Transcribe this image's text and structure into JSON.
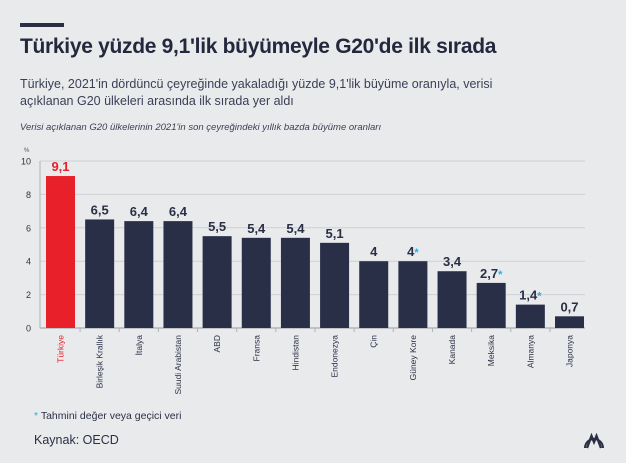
{
  "title": "Türkiye yüzde 9,1'lik büyümeyle G20'de ilk sırada",
  "subtitle": "Türkiye, 2021'in dördüncü çeyreğinde yakaladığı yüzde 9,1'lik büyüme oranıyla, verisi açıklanan G20 ülkeleri arasında ilk sırada yer aldı",
  "caption": "Verisi açıklanan G20 ülkelerinin 2021'in son çeyreğindeki yıllık bazda büyüme oranları",
  "footnote": {
    "star": "*",
    "text": " Tahmini değer veya geçici veri"
  },
  "source": "Kaynak: OECD",
  "logo_text": "AA",
  "colors": {
    "highlight": "#e8202a",
    "bar": "#2a2f48",
    "star": "#2ab0e0",
    "background": "#e9eaec"
  },
  "chart_data": {
    "type": "bar",
    "ylabel": "%",
    "ylim": [
      0,
      10
    ],
    "yticks": [
      "0",
      "2",
      "4",
      "6",
      "8",
      "10"
    ],
    "grid": true,
    "categories": [
      "Türkiye",
      "Birleşik Krallık",
      "İtalya",
      "Suudi Arabistan",
      "ABD",
      "Fransa",
      "Hindistan",
      "Endonezya",
      "Çin",
      "Güney Kore",
      "Kanada",
      "Meksika",
      "Almanya",
      "Japonya"
    ],
    "values": [
      9.1,
      6.5,
      6.4,
      6.4,
      5.5,
      5.4,
      5.4,
      5.1,
      4,
      4,
      3.4,
      2.7,
      1.4,
      0.7
    ],
    "labels": [
      "9,1",
      "6,5",
      "6,4",
      "6,4",
      "5,5",
      "5,4",
      "5,4",
      "5,1",
      "4",
      "4",
      "3,4",
      "2,7",
      "1,4",
      "0,7"
    ],
    "estimated": [
      false,
      false,
      false,
      false,
      false,
      false,
      false,
      false,
      false,
      true,
      false,
      true,
      true,
      false
    ],
    "highlighted": [
      true,
      false,
      false,
      false,
      false,
      false,
      false,
      false,
      false,
      false,
      false,
      false,
      false,
      false
    ]
  }
}
